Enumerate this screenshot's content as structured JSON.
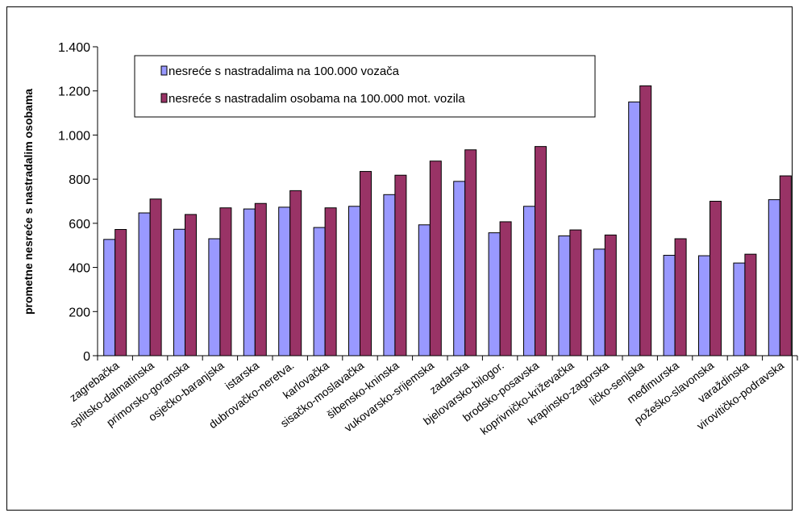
{
  "chart_data": {
    "type": "bar",
    "title": "",
    "xlabel": "",
    "ylabel": "prometne nesreće s nastradalim osobama",
    "ylim": [
      0,
      1400
    ],
    "yticks": [
      0,
      200,
      400,
      600,
      800,
      1000,
      1200,
      1400
    ],
    "ytick_labels": [
      "0",
      "200",
      "400",
      "600",
      "800",
      "1.000",
      "1.200",
      "1.400"
    ],
    "legend_position": "top-left",
    "grid": false,
    "categories": [
      "zagrebačka",
      "splitsko-dalmatinska",
      "primorsko-goranska",
      "osječko-baranjska",
      "istarska",
      "dubrovačko-neretva.",
      "karlovačka",
      "sisačko-moslavačka",
      "šibensko-kninska",
      "vukovarsko-srijemska",
      "zadarska",
      "bjelovarsko-bilogor.",
      "brodsko-posavska",
      "koprivničko-križevačka",
      "krapinsko-zagorska",
      "ličko-senjska",
      "međimurska",
      "požeško-slavonska",
      "varaždinska",
      "virovitičko-podravska"
    ],
    "series": [
      {
        "name": "nesreće s nastradalima na 100.000 vozača",
        "color": "#9999ff",
        "values": [
          527,
          647,
          573,
          530,
          665,
          673,
          581,
          677,
          730,
          593,
          790,
          557,
          677,
          543,
          483,
          1150,
          455,
          453,
          420,
          707
        ]
      },
      {
        "name": "nesreće s nastradalim osobama na 100.000 mot. vozila",
        "color": "#993366",
        "values": [
          572,
          710,
          640,
          670,
          690,
          748,
          670,
          835,
          818,
          882,
          933,
          607,
          948,
          570,
          547,
          1223,
          530,
          700,
          460,
          815
        ]
      }
    ]
  }
}
